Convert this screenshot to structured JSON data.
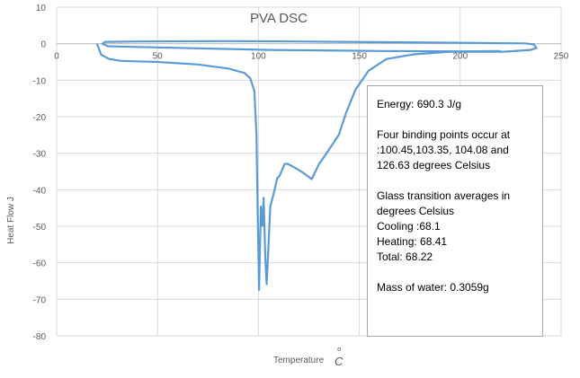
{
  "chart_data": {
    "type": "line",
    "title": "PVA DSC",
    "xlabel": "Temperature",
    "xunit_degree": "°",
    "xunit": "C",
    "ylabel": "Heat Flow  J",
    "xlim": [
      0,
      250
    ],
    "ylim": [
      -80,
      10
    ],
    "xticks": [
      0,
      50,
      100,
      150,
      200,
      250
    ],
    "yticks": [
      10,
      0,
      -10,
      -20,
      -30,
      -40,
      -50,
      -60,
      -70,
      -80
    ],
    "grid": true,
    "series": [
      {
        "name": "PVA",
        "color": "#5b9bd5",
        "points": [
          [
            20,
            0
          ],
          [
            22,
            -3
          ],
          [
            26,
            -4.2
          ],
          [
            32,
            -4.7
          ],
          [
            50,
            -5
          ],
          [
            70,
            -5.7
          ],
          [
            85,
            -6.8
          ],
          [
            93,
            -8
          ],
          [
            96,
            -9.5
          ],
          [
            98,
            -13
          ],
          [
            99,
            -25
          ],
          [
            99.6,
            -45
          ],
          [
            100.3,
            -67.4
          ],
          [
            101.2,
            -44.6
          ],
          [
            101.9,
            -49.9
          ],
          [
            102.6,
            -42.2
          ],
          [
            103.4,
            -58.5
          ],
          [
            104.1,
            -65.9
          ],
          [
            105.9,
            -44.6
          ],
          [
            108,
            -40
          ],
          [
            109.3,
            -36.8
          ],
          [
            110.4,
            -36.3
          ],
          [
            113,
            -32.9
          ],
          [
            114.5,
            -32.9
          ],
          [
            117.5,
            -33.8
          ],
          [
            122,
            -35.3
          ],
          [
            126.4,
            -37.1
          ],
          [
            130,
            -33
          ],
          [
            135,
            -29
          ],
          [
            139.8,
            -25
          ],
          [
            143.5,
            -18.9
          ],
          [
            148,
            -12.7
          ],
          [
            154.6,
            -7.4
          ],
          [
            163.5,
            -4.2
          ],
          [
            177,
            -2.9
          ],
          [
            194.7,
            -2.2
          ],
          [
            221.5,
            -2.2
          ],
          [
            234.9,
            -1.7
          ],
          [
            237.8,
            -1.2
          ],
          [
            236.5,
            -0.2
          ],
          [
            232,
            0.1
          ],
          [
            185.8,
            0.3
          ],
          [
            120,
            0.6
          ],
          [
            83,
            0.7
          ],
          [
            40,
            0.6
          ],
          [
            24,
            0.5
          ],
          [
            22.7,
            0
          ],
          [
            25.4,
            -0.7
          ],
          [
            40,
            -0.9
          ],
          [
            105.6,
            -1.7
          ],
          [
            160,
            -2.0
          ],
          [
            200,
            -2.1
          ],
          [
            220,
            -2.0
          ]
        ]
      }
    ],
    "annotation": {
      "energy": "Energy: 690.3 J/g",
      "binding_1": "Four binding points occur at",
      "binding_2": ":100.45,103.35,  104.08  and",
      "binding_3": "126.63 degrees Celsius",
      "glass_1": "Glass transition averages in",
      "glass_2": "degrees Celsius",
      "cooling": "Cooling :68.1",
      "heating": "Heating: 68.41",
      "total": "Total: 68.22",
      "water": "Mass of water: 0.3059g"
    }
  }
}
